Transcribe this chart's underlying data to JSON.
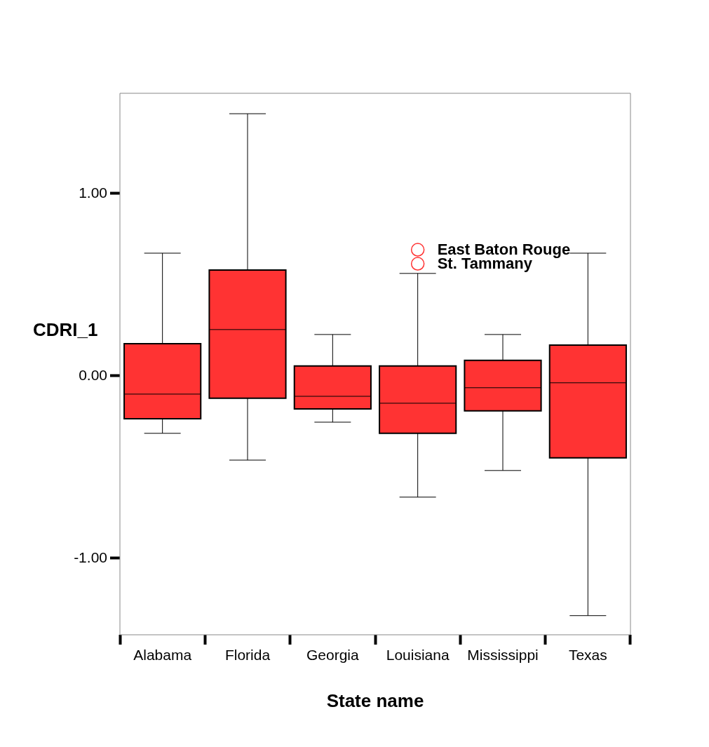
{
  "chart_data": {
    "type": "box",
    "xlabel": "State name",
    "ylabel": "CDRI_1",
    "categories": [
      "Alabama",
      "Florida",
      "Georgia",
      "Louisiana",
      "Mississippi",
      "Texas"
    ],
    "color": "#ff3333",
    "boxes": [
      {
        "low": -0.315,
        "q1": -0.235,
        "median": -0.1,
        "q3": 0.177,
        "high": 0.673
      },
      {
        "low": -0.462,
        "q1": -0.123,
        "median": 0.254,
        "q3": 0.581,
        "high": 1.438
      },
      {
        "low": -0.254,
        "q1": -0.181,
        "median": -0.112,
        "q3": 0.054,
        "high": 0.227
      },
      {
        "low": -0.665,
        "q1": -0.315,
        "median": -0.15,
        "q3": 0.054,
        "high": 0.562,
        "outliers": [
          0.692,
          0.615
        ]
      },
      {
        "low": -0.519,
        "q1": -0.192,
        "median": -0.065,
        "q3": 0.085,
        "high": 0.227
      },
      {
        "low": -1.315,
        "q1": -0.45,
        "median": -0.038,
        "q3": 0.169,
        "high": 0.673
      }
    ],
    "ylim": [
      -1.42,
      1.55
    ],
    "yticks": [
      {
        "value": -1,
        "label": "-1.00"
      },
      {
        "value": 0,
        "label": "0.00"
      },
      {
        "value": 1,
        "label": "1.00"
      }
    ],
    "grid": false,
    "legend": false,
    "annotations": [
      "East Baton Rouge",
      "St. Tammany"
    ]
  }
}
